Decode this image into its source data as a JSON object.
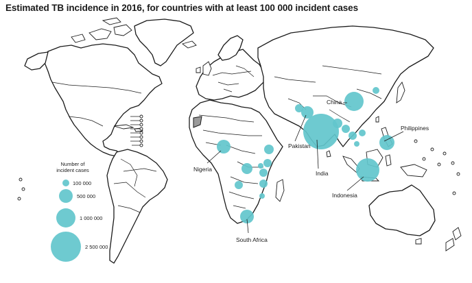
{
  "title": "Estimated TB incidence in 2016, for countries with at least 100 000 incident cases",
  "colors": {
    "bubble": "#62c6cc",
    "land": "#ffffff",
    "border": "#1a1a1a",
    "special": "#9a9a9a"
  },
  "legend": {
    "title_line1": "Number of",
    "title_line2": "incident cases",
    "items": [
      {
        "label": "100 000",
        "value": 100000
      },
      {
        "label": "500 000",
        "value": 500000
      },
      {
        "label": "1 000 000",
        "value": 1000000
      },
      {
        "label": "2 500 000",
        "value": 2500000
      }
    ]
  },
  "labels": {
    "china": "China",
    "pakistan": "Pakistan",
    "india": "India",
    "philippines": "Philippines",
    "indonesia": "Indonesia",
    "nigeria": "Nigeria",
    "south_africa": "South Africa"
  }
}
